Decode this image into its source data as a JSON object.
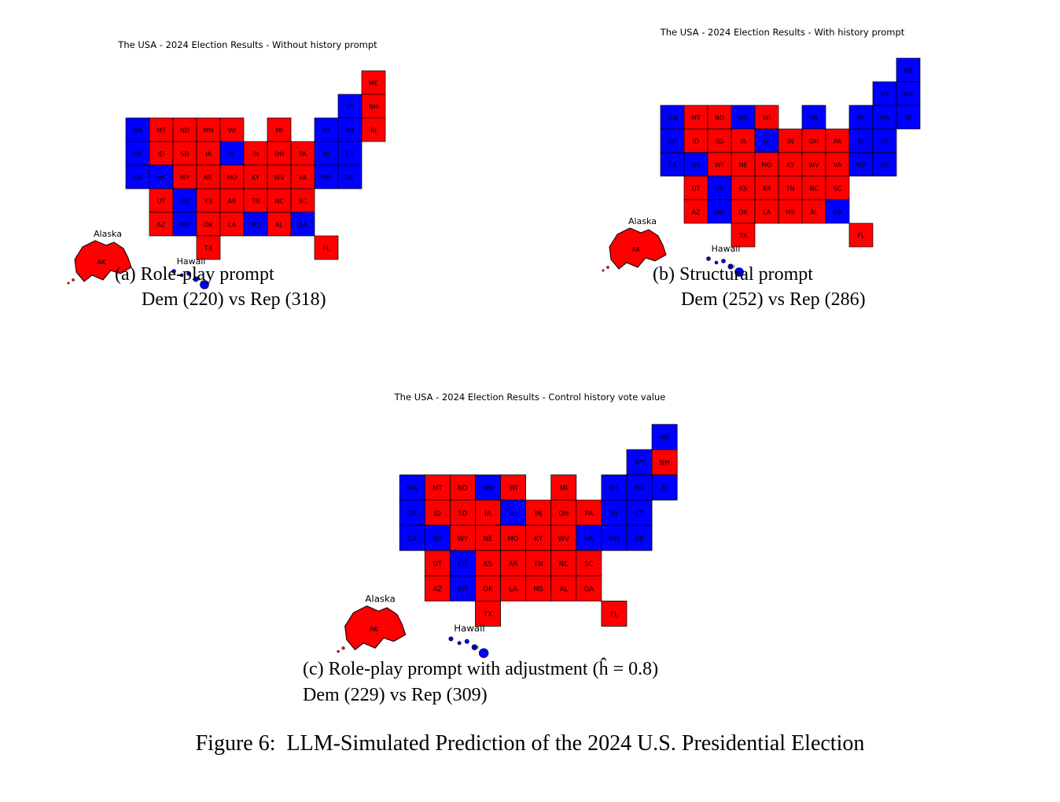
{
  "figure": {
    "caption": "Figure 6:  LLM-Simulated Prediction of the 2024 U.S. Presidential Election"
  },
  "colors": {
    "dem": "#0000ff",
    "rep": "#ff0000",
    "border": "#000000",
    "background": "#ffffff"
  },
  "inset_labels": {
    "alaska": "Alaska",
    "hawaii": "Hawaii"
  },
  "states": {
    "contiguous": [
      "ME",
      "VT",
      "NH",
      "WA",
      "MT",
      "ND",
      "MN",
      "WI",
      "MI",
      "NY",
      "MA",
      "RI",
      "OR",
      "ID",
      "SD",
      "IA",
      "IL",
      "IN",
      "OH",
      "PA",
      "NJ",
      "CT",
      "CA",
      "NV",
      "WY",
      "NE",
      "MO",
      "KY",
      "WV",
      "VA",
      "MD",
      "DE",
      "UT",
      "CO",
      "KS",
      "AR",
      "TN",
      "NC",
      "SC",
      "AZ",
      "NM",
      "OK",
      "LA",
      "MS",
      "AL",
      "GA",
      "TX",
      "FL"
    ],
    "alaska": "AK",
    "hawaii": "HI"
  },
  "maps": [
    {
      "id": "a",
      "title": "The USA - 2024 Election Results - Without history prompt",
      "caption": {
        "line1": "(a) Role-play prompt",
        "line2": "Dem (220) vs Rep (318)"
      },
      "totals": {
        "dem": 220,
        "rep": 318
      },
      "dem_states": [
        "WA",
        "OR",
        "CA",
        "NV",
        "CO",
        "NM",
        "IL",
        "NY",
        "VT",
        "MA",
        "CT",
        "NJ",
        "DE",
        "MD",
        "GA",
        "MS",
        "HI"
      ]
    },
    {
      "id": "b",
      "title": "The USA - 2024 Election Results - With history prompt",
      "caption": {
        "line1": "(b) Structural prompt",
        "line2": "Dem (252) vs Rep (286)"
      },
      "totals": {
        "dem": 252,
        "rep": 286
      },
      "dem_states": [
        "WA",
        "OR",
        "CA",
        "NV",
        "CO",
        "NM",
        "MN",
        "MI",
        "IL",
        "NY",
        "ME",
        "VT",
        "NH",
        "MA",
        "RI",
        "CT",
        "NJ",
        "DE",
        "MD",
        "GA",
        "HI"
      ]
    },
    {
      "id": "c",
      "title": "The USA - 2024 Election Results - Control history vote value",
      "caption": {
        "line1": "(c) Role-play prompt with adjustment (ĥ = 0.8)",
        "line2": "Dem (229) vs Rep (309)"
      },
      "totals": {
        "dem": 229,
        "rep": 309
      },
      "dem_states": [
        "WA",
        "OR",
        "CA",
        "NV",
        "CO",
        "NM",
        "MN",
        "IL",
        "NY",
        "ME",
        "VT",
        "MA",
        "RI",
        "CT",
        "NJ",
        "DE",
        "MD",
        "VA",
        "HI"
      ]
    }
  ]
}
